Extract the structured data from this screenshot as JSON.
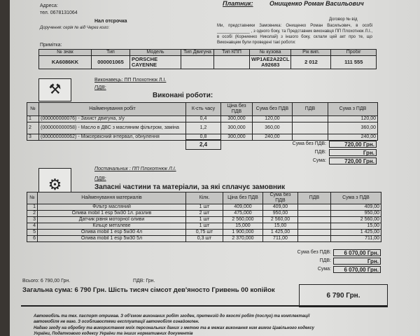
{
  "header": {
    "address_label": "Адреса:",
    "phone": "тел. 0678131064",
    "payment": "Нал отсрочка",
    "proxy": "Доручення: серія   №   від  Через кого:",
    "note_label": "Примітка:",
    "payer_label": "Платник:",
    "payer_name": "Онищенко Роман Васильович",
    "contract": "Договор №   від",
    "intro": "Ми, представники Замовника: Онищенко Роман Васильович, в особі ______________ , з одного боку, та  Представник виконавця ПП Плохотнюк Л.І., в особі  (Корниенко Николай) з іншого боку, склали цей акт про те, що Виконавцем були проведені такі роботи:"
  },
  "vehicle": {
    "headers": [
      "№ знак",
      "Тип",
      "Модель",
      "Тип Двигуна",
      "Тип КПП",
      "№ кузова",
      "Рік вип.",
      "Пробіг"
    ],
    "row": [
      "KA6086KK",
      "000001065",
      "PORSCHE CAYENNE",
      "",
      "",
      "WP1AE2A22CL A92683",
      "2 012",
      "111 555"
    ]
  },
  "works": {
    "executor": "Виконавець:  ПП Плохотнюк Л.І.",
    "vat_label": "ПДВ:",
    "title": "Виконані роботи:",
    "headers": [
      "№",
      "Найменування робіт",
      "К-сть часу",
      "Ціна без ПДВ",
      "Сума без ПДВ",
      "ПДВ",
      "Сума з ПДВ"
    ],
    "rows": [
      [
        "1",
        "(000000000076) -  Захист двигуна, з/у",
        "0,4",
        "300,000",
        "120,00",
        "",
        "120,00"
      ],
      [
        "2",
        "(000000000058) -  Масло в ДВС з масляним фільтром, заміна",
        "1,2",
        "300,000",
        "360,00",
        "",
        "360,00"
      ],
      [
        "3",
        "(000000000062) -  Міжсервісний інтервал, обнулення",
        "0,8",
        "300,000",
        "240,00",
        "",
        "240,00"
      ]
    ],
    "total_hours": "2,4",
    "sum_no_vat_label": "Сума без ПДВ:",
    "sum_no_vat": "720,00 Грн.",
    "vat_sum_label": "ПДВ:",
    "vat_sum": "Грн.",
    "sum_label": "Сума:",
    "sum": "720,00 Грн."
  },
  "parts": {
    "supplier": "Постачальник :  ПП Плохотнюк Л.І.",
    "vat_label": "ПДВ:",
    "title": "Запасні частини та матеріали, за які сплачує замовник",
    "headers": [
      "№",
      "Найменування материалів",
      "Кілк.",
      "Ціна без ПДВ",
      "Сума без ПДВ",
      "ПДВ",
      "Сума з ПДВ"
    ],
    "rows": [
      [
        "1",
        "Фільтр масляний",
        "1 шт",
        "409,000",
        "409,00",
        "",
        "409,00"
      ],
      [
        "2",
        "Олива mobil 1 esp 5w30 1л. разлив",
        "2 шт",
        "475,000",
        "950,00",
        "",
        "950,00"
      ],
      [
        "3",
        "Датчик рівня моторної оливи",
        "1 шт",
        "2 560,000",
        "2 560,00",
        "",
        "2 560,00"
      ],
      [
        "4",
        "Кільце металеве",
        "1 шт",
        "15,000",
        "15,00",
        "",
        "15,00"
      ],
      [
        "5",
        "Олива mobil 1 esp 5w30 4л",
        "0,75 шт",
        "1 900,000",
        "1 425,00",
        "",
        "1 425,00"
      ],
      [
        "6",
        "Олива mobil 1 esp 5w30 5л",
        "0,3 шт",
        "2 370,000",
        "711,00",
        "",
        "711,00"
      ]
    ],
    "sum_no_vat_label": "Сума без ПДВ:",
    "sum_no_vat": "6 070,00 Грн.",
    "vat_sum_label": "ПДВ:",
    "vat_sum": "Грн.",
    "sum_label": "Сума:",
    "sum": "6 070,00 Грн."
  },
  "totals": {
    "all": "Всього: 6 790,00 Грн.",
    "vat": "ПДВ:   Грн.",
    "grand": "Загальна сума:   6 790 Грн.  Шість тисяч сімсот дев'яносто Гривень 00 копійок",
    "grand_box": "6 790 Грн."
  },
  "footer": {
    "line1": "Автомобіль та тех. паспорт отримав. З об'ємом виконаних робіт згоден, претензій до якості робіт (послуг) та комплектації",
    "line2": "автомобіля не маю. З особливостями експлуатації автомобіля ознайомлен.",
    "line3": "Надаю згоду на обробку та використання   моїх персональних даних з метою та в межах виконання ним вимог Цивільного кодексу",
    "line4": "України, Податкового кодексу України та інших нормативних документів"
  }
}
